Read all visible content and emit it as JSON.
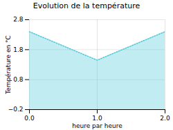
{
  "chart_data": {
    "type": "line",
    "title": "Evolution de la température",
    "xlabel": "heure par heure",
    "ylabel": "Température en °C",
    "x": [
      0,
      1,
      2
    ],
    "values": [
      2.4,
      1.45,
      2.4
    ],
    "xlim": [
      0,
      2
    ],
    "ylim": [
      -0.2,
      2.8
    ],
    "xticks": [
      0,
      1,
      2
    ],
    "yticks": [
      -0.2,
      0.8,
      1.8,
      2.8
    ],
    "color": "#4dc8d8",
    "line_style": "dotted",
    "grid": true
  }
}
